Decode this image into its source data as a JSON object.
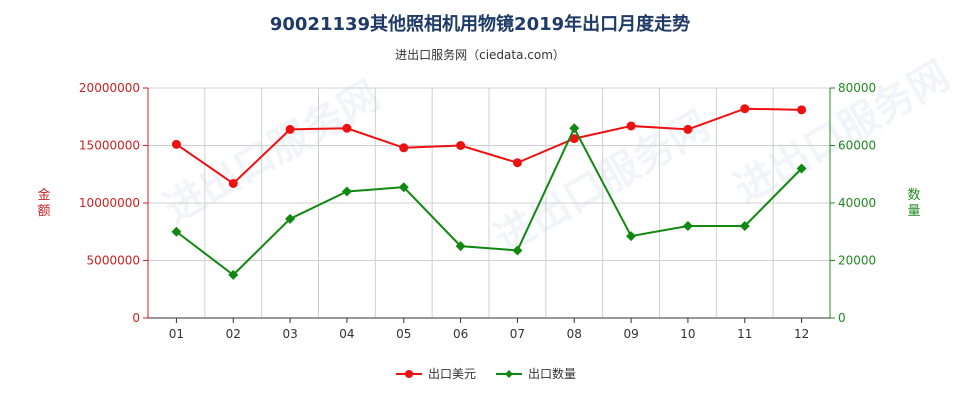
{
  "title": "90021139其他照相机用物镜2019年出口月度走势",
  "subtitle": "进出口服务网（ciedata.com）",
  "watermark_text": "进出口服务网",
  "colors": {
    "amount": "#ee1111",
    "quantity": "#118811",
    "axis_left": "#cc2222",
    "axis_right": "#228822",
    "grid": "#d0d0d0"
  },
  "chart_data": {
    "type": "line",
    "categories": [
      "01",
      "02",
      "03",
      "04",
      "05",
      "06",
      "07",
      "08",
      "09",
      "10",
      "11",
      "12"
    ],
    "series": [
      {
        "name": "出口美元",
        "axis": "left",
        "values": [
          15100000,
          11700000,
          16400000,
          16500000,
          14800000,
          15000000,
          13500000,
          15600000,
          16700000,
          16400000,
          18200000,
          18100000
        ]
      },
      {
        "name": "出口数量",
        "axis": "right",
        "values": [
          30000,
          15000,
          34500,
          44000,
          45500,
          25000,
          23500,
          66000,
          28500,
          32000,
          32000,
          52000
        ]
      }
    ],
    "y_left": {
      "label": "金额",
      "min": 0,
      "max": 20000000,
      "ticks": [
        "0",
        "5000000",
        "10000000",
        "15000000",
        "20000000"
      ]
    },
    "y_right": {
      "label": "数量",
      "min": 0,
      "max": 80000,
      "ticks": [
        "0",
        "20000",
        "40000",
        "60000",
        "80000"
      ]
    },
    "grid": true,
    "legend_position": "bottom-center"
  }
}
